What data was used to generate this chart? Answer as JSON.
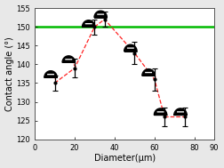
{
  "x_data": [
    10,
    20,
    30,
    35,
    50,
    60,
    65,
    75
  ],
  "y_data": [
    135,
    139,
    150,
    152,
    143,
    136,
    126,
    126
  ],
  "yerr": [
    2.0,
    2.5,
    2.0,
    2.0,
    3.0,
    3.0,
    2.5,
    2.5
  ],
  "hline_y": 150,
  "hline_color": "#00bb00",
  "hline_lw": 1.8,
  "line_color": "#ff2222",
  "line_lw": 0.9,
  "line_style": "--",
  "ecolor": "black",
  "ecapsize": 2,
  "elinewidth": 0.9,
  "xlim": [
    0,
    90
  ],
  "ylim": [
    120,
    155
  ],
  "xticks": [
    0,
    20,
    40,
    60,
    80,
    90
  ],
  "yticks": [
    120,
    125,
    130,
    135,
    140,
    145,
    150,
    155
  ],
  "xlabel": "Diameter(μm)",
  "ylabel": "Contact angle (°)",
  "xlabel_fontsize": 7,
  "ylabel_fontsize": 7,
  "tick_fontsize": 6,
  "bg_color": "#e8e8e8",
  "droplet_positions": [
    [
      8,
      136.5
    ],
    [
      17,
      140.5
    ],
    [
      27,
      150.0
    ],
    [
      33,
      152.5
    ],
    [
      48,
      143.5
    ],
    [
      57,
      137.0
    ],
    [
      63,
      126.5
    ],
    [
      73,
      126.5
    ]
  ],
  "droplet_r": 3.2,
  "droplet_squeeze": 0.55,
  "annotation_lines": [
    [
      [
        10,
        137.5
      ],
      [
        10.5,
        135
      ]
    ],
    [
      [
        19,
        141.8
      ],
      [
        20,
        139
      ]
    ],
    [
      [
        29,
        151.5
      ],
      [
        30.5,
        150
      ]
    ],
    [
      [
        35,
        153.8
      ],
      [
        35.5,
        152
      ]
    ],
    [
      [
        50,
        145.0
      ],
      [
        50.5,
        143
      ]
    ],
    [
      [
        59,
        138.5
      ],
      [
        61,
        136
      ]
    ],
    [
      [
        65,
        128.0
      ],
      [
        65.5,
        126
      ]
    ],
    [
      [
        75,
        128.0
      ],
      [
        75.5,
        126
      ]
    ]
  ]
}
